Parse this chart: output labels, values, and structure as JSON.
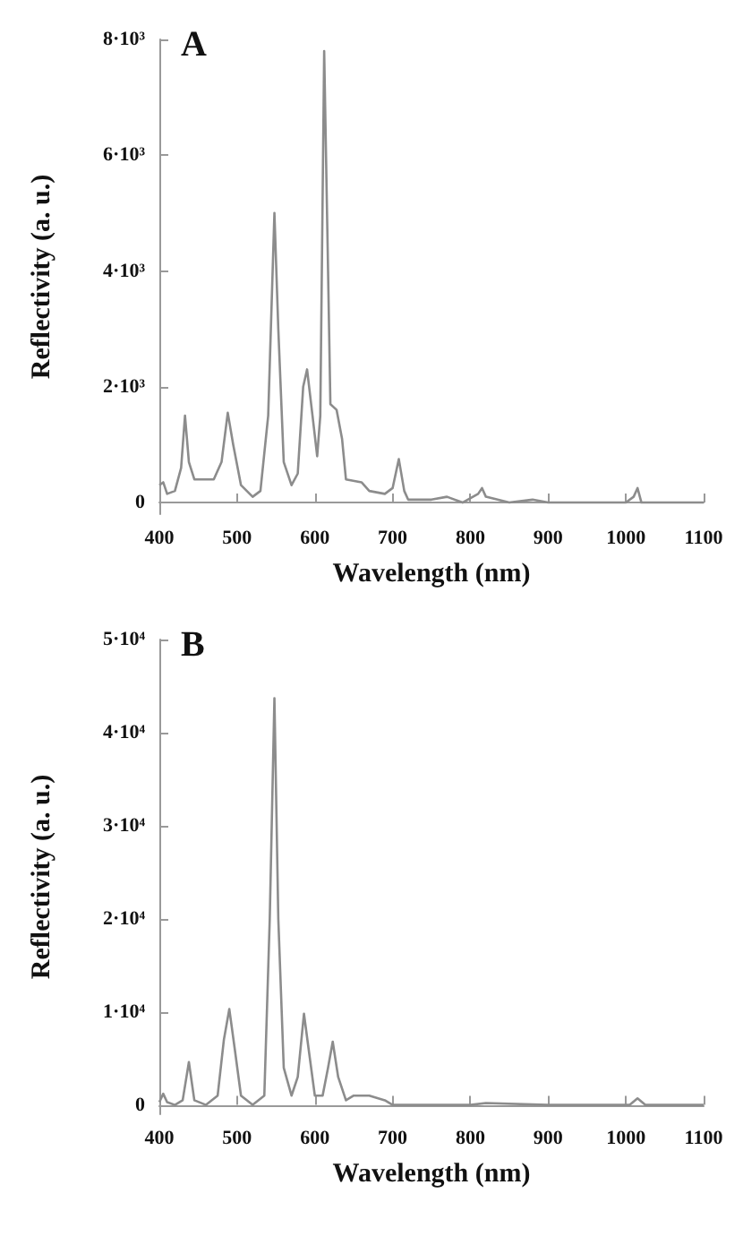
{
  "chart_data": [
    {
      "type": "line",
      "title": "A",
      "xlabel": "Wavelength (nm)",
      "ylabel": "Reflectivity (a. u.)",
      "xlim": [
        400,
        1100
      ],
      "xticks": [
        400,
        500,
        600,
        700,
        800,
        900,
        1000,
        1100
      ],
      "ylim": [
        -200,
        8000
      ],
      "yticks": [
        0,
        {
          "value": 2000,
          "label": "2·10³"
        },
        {
          "value": 4000,
          "label": "4·10³"
        },
        {
          "value": 6000,
          "label": "6·10³"
        },
        {
          "value": 8000,
          "label": "8·10³"
        }
      ],
      "grid": false,
      "marker": "none",
      "line_style": "solid",
      "series": [
        {
          "color": "#8c8c8c",
          "x": [
            400,
            405,
            410,
            420,
            428,
            433,
            438,
            445,
            470,
            480,
            488,
            495,
            505,
            520,
            530,
            540,
            548,
            553,
            560,
            570,
            578,
            585,
            590,
            597,
            603,
            607,
            612,
            617,
            620,
            628,
            635,
            640,
            660,
            670,
            690,
            700,
            708,
            715,
            720,
            750,
            770,
            790,
            810,
            815,
            820,
            850,
            880,
            900,
            1000,
            1010,
            1015,
            1020,
            1100
          ],
          "values": [
            300,
            350,
            150,
            200,
            600,
            1500,
            700,
            400,
            400,
            700,
            1550,
            1000,
            300,
            100,
            200,
            1500,
            5000,
            3000,
            700,
            300,
            500,
            2000,
            2300,
            1500,
            800,
            1500,
            7800,
            4000,
            1700,
            1600,
            1100,
            400,
            350,
            200,
            150,
            250,
            750,
            200,
            50,
            50,
            100,
            0,
            150,
            250,
            100,
            0,
            50,
            0,
            0,
            100,
            250,
            0,
            0
          ]
        }
      ]
    },
    {
      "type": "line",
      "title": "B",
      "xlabel": "Wavelength (nm)",
      "ylabel": "Reflectivity (a. u.)",
      "xlim": [
        400,
        1100
      ],
      "xticks": [
        400,
        500,
        600,
        700,
        800,
        900,
        1000,
        1100
      ],
      "ylim": [
        -1000,
        50000
      ],
      "yticks": [
        0,
        {
          "value": 10000,
          "label": "1·10⁴"
        },
        {
          "value": 20000,
          "label": "2·10⁴"
        },
        {
          "value": 30000,
          "label": "3·10⁴"
        },
        {
          "value": 40000,
          "label": "4·10⁴"
        },
        {
          "value": 50000,
          "label": "5·10⁴"
        }
      ],
      "grid": false,
      "marker": "none",
      "line_style": "solid",
      "series": [
        {
          "color": "#8c8c8c",
          "x": [
            400,
            405,
            410,
            420,
            430,
            438,
            445,
            460,
            475,
            483,
            490,
            497,
            505,
            520,
            535,
            542,
            548,
            553,
            560,
            570,
            578,
            586,
            592,
            600,
            610,
            617,
            623,
            630,
            640,
            650,
            670,
            690,
            700,
            720,
            800,
            820,
            900,
            1005,
            1015,
            1025,
            1100
          ],
          "values": [
            300,
            1200,
            300,
            0,
            500,
            4600,
            500,
            0,
            1000,
            7000,
            10300,
            6000,
            1000,
            0,
            1000,
            20000,
            43700,
            20000,
            4000,
            1000,
            3000,
            9800,
            6000,
            1000,
            1000,
            4000,
            6800,
            3000,
            500,
            1000,
            1000,
            500,
            0,
            0,
            0,
            200,
            0,
            0,
            700,
            0,
            0
          ]
        }
      ]
    }
  ]
}
